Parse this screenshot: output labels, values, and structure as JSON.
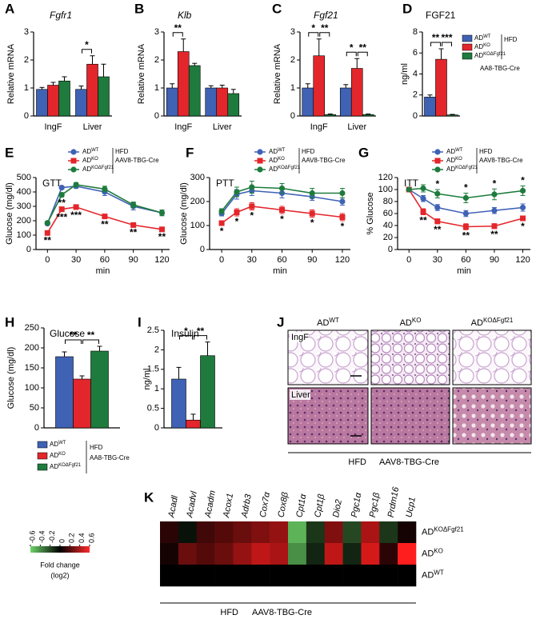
{
  "chart_data": [
    {
      "type": "bar",
      "panel": "A",
      "title": "Fgfr1",
      "ylabel": "Relative mRNA",
      "categories": [
        "IngF",
        "Liver"
      ],
      "series": [
        {
          "color": "#3f62b5",
          "values": [
            0.95,
            0.95
          ],
          "errors": [
            0.07,
            0.12
          ]
        },
        {
          "color": "#e3262b",
          "values": [
            1.1,
            1.85
          ],
          "errors": [
            0.1,
            0.3
          ]
        },
        {
          "color": "#1e7b3d",
          "values": [
            1.25,
            1.4
          ],
          "errors": [
            0.15,
            0.45
          ]
        }
      ],
      "ylim": [
        0,
        3
      ],
      "yticks": [
        0,
        1,
        2,
        3
      ],
      "annotations": [
        "*"
      ]
    },
    {
      "type": "bar",
      "panel": "B",
      "title": "Klb",
      "ylabel": "Relative mRNA",
      "categories": [
        "IngF",
        "Liver"
      ],
      "series": [
        {
          "color": "#3f62b5",
          "values": [
            1.0,
            1.0
          ],
          "errors": [
            0.15,
            0.08
          ]
        },
        {
          "color": "#e3262b",
          "values": [
            2.3,
            1.0
          ],
          "errors": [
            0.45,
            0.1
          ]
        },
        {
          "color": "#1e7b3d",
          "values": [
            1.8,
            0.8
          ],
          "errors": [
            0.08,
            0.15
          ]
        }
      ],
      "ylim": [
        0,
        3
      ],
      "yticks": [
        0,
        1,
        2,
        3
      ],
      "annotations": [
        "**"
      ]
    },
    {
      "type": "bar",
      "panel": "C",
      "title": "Fgf21",
      "ylabel": "Relative mRNA",
      "categories": [
        "IngF",
        "Liver"
      ],
      "series": [
        {
          "color": "#3f62b5",
          "values": [
            1.0,
            1.0
          ],
          "errors": [
            0.15,
            0.12
          ]
        },
        {
          "color": "#e3262b",
          "values": [
            2.15,
            1.7
          ],
          "errors": [
            0.6,
            0.35
          ]
        },
        {
          "color": "#1e7b3d",
          "values": [
            0.05,
            0.05
          ],
          "errors": [
            0.02,
            0.02
          ]
        }
      ],
      "ylim": [
        0,
        3
      ],
      "yticks": [
        0,
        1,
        2,
        3
      ],
      "annotations": [
        "*",
        "**",
        "*",
        "**"
      ]
    },
    {
      "type": "bar",
      "panel": "D",
      "title": "FGF21",
      "ylabel": "ng/ml",
      "categories": [
        null
      ],
      "series": [
        {
          "name": "AD",
          "name_sup": "WT",
          "color": "#3f62b5",
          "values": [
            1.8
          ],
          "errors": [
            0.2
          ]
        },
        {
          "name": "AD",
          "name_sup": "KO",
          "color": "#e3262b",
          "values": [
            5.4
          ],
          "errors": [
            1.0
          ]
        },
        {
          "name": "AD",
          "name_sup": "KOΔFgf21",
          "color": "#1e7b3d",
          "values": [
            0.1
          ],
          "errors": [
            0.05
          ]
        }
      ],
      "legend_notes": [
        "HFD",
        "AA8-TBG-Cre"
      ],
      "ylim": [
        0,
        8
      ],
      "yticks": [
        0,
        2,
        4,
        6,
        8
      ],
      "annotations": [
        "**",
        "***"
      ]
    },
    {
      "type": "line",
      "panel": "E",
      "title": "GTT",
      "ylabel": "Glucose (mg/dl)",
      "xlabel": "min",
      "x": [
        0,
        15,
        30,
        60,
        90,
        120
      ],
      "xlim": [
        -12,
        128
      ],
      "xticks": [
        0,
        30,
        60,
        90,
        120
      ],
      "ylim": [
        0,
        500
      ],
      "yticks": [
        0,
        100,
        200,
        300,
        400,
        500
      ],
      "series": [
        {
          "name": "AD",
          "name_sup": "WT",
          "color": "#3f62b5",
          "marker": "circle",
          "values": [
            180,
            430,
            440,
            400,
            300,
            255
          ],
          "errors": [
            10,
            10,
            15,
            25,
            25,
            20
          ],
          "labels": [
            null,
            null,
            null,
            null,
            null,
            null
          ],
          "label_position": "below"
        },
        {
          "name": "AD",
          "name_sup": "KO",
          "color": "#e3262b",
          "marker": "square",
          "values": [
            115,
            280,
            295,
            230,
            170,
            140
          ],
          "errors": [
            10,
            15,
            15,
            15,
            10,
            10
          ],
          "labels": [
            "**",
            "***",
            "***",
            "**",
            "**",
            "**"
          ],
          "label_position": "below"
        },
        {
          "name": "AD",
          "name_sup": "KOΔFgf21",
          "color": "#1e7b3d",
          "marker": "circle",
          "values": [
            185,
            380,
            450,
            420,
            310,
            255
          ],
          "errors": [
            10,
            15,
            15,
            20,
            20,
            20
          ],
          "labels": [
            null,
            "**",
            null,
            null,
            null,
            null
          ],
          "label_position": "below"
        }
      ],
      "legend_notes": [
        "HFD",
        "AAV8-TBG-Cre"
      ]
    },
    {
      "type": "line",
      "panel": "F",
      "title": "PTT",
      "ylabel": "Glucose (mg/dl)",
      "xlabel": "min",
      "x": [
        0,
        15,
        30,
        60,
        90,
        120
      ],
      "xlim": [
        -12,
        128
      ],
      "xticks": [
        0,
        30,
        60,
        90,
        120
      ],
      "ylim": [
        0,
        300
      ],
      "yticks": [
        0,
        100,
        200,
        300
      ],
      "series": [
        {
          "name": "AD",
          "name_sup": "WT",
          "color": "#3f62b5",
          "marker": "circle",
          "values": [
            150,
            230,
            245,
            235,
            220,
            200
          ],
          "errors": [
            10,
            20,
            20,
            20,
            15,
            15
          ],
          "labels": [
            null,
            null,
            null,
            null,
            null,
            null
          ],
          "label_position": "below"
        },
        {
          "name": "AD",
          "name_sup": "KO",
          "color": "#e3262b",
          "marker": "square",
          "values": [
            110,
            155,
            180,
            165,
            150,
            135
          ],
          "errors": [
            10,
            15,
            15,
            15,
            15,
            15
          ],
          "labels": [
            "*",
            "*",
            "*",
            "*",
            "*",
            "*"
          ],
          "label_position": "below"
        },
        {
          "name": "AD",
          "name_sup": "KOΔFgf21",
          "color": "#1e7b3d",
          "marker": "circle",
          "values": [
            160,
            240,
            260,
            255,
            235,
            235
          ],
          "errors": [
            10,
            20,
            25,
            20,
            20,
            20
          ],
          "labels": [
            null,
            null,
            null,
            null,
            null,
            null
          ],
          "label_position": "above"
        }
      ],
      "legend_notes": [
        "HFD",
        "AAV8-TBG-Cre"
      ]
    },
    {
      "type": "line",
      "panel": "G",
      "title": "ITT",
      "ylabel": "% Glucose",
      "xlabel": "min",
      "x": [
        0,
        15,
        30,
        60,
        90,
        120
      ],
      "xlim": [
        -12,
        128
      ],
      "xticks": [
        0,
        30,
        60,
        90,
        120
      ],
      "ylim": [
        0,
        120
      ],
      "yticks": [
        0,
        20,
        40,
        60,
        80,
        100,
        120
      ],
      "series": [
        {
          "name": "AD",
          "name_sup": "WT",
          "color": "#3f62b5",
          "marker": "circle",
          "values": [
            100,
            85,
            70,
            60,
            65,
            70
          ],
          "errors": [
            2,
            5,
            5,
            5,
            5,
            6
          ],
          "labels": [
            null,
            null,
            null,
            null,
            null,
            null
          ],
          "label_position": "below"
        },
        {
          "name": "AD",
          "name_sup": "KO",
          "color": "#e3262b",
          "marker": "square",
          "values": [
            100,
            63,
            47,
            38,
            39,
            52
          ],
          "errors": [
            2,
            5,
            4,
            5,
            4,
            4
          ],
          "labels": [
            null,
            "**",
            "**",
            "**",
            "**",
            "*"
          ],
          "label_position": "below"
        },
        {
          "name": "AD",
          "name_sup": "KOΔFgf21",
          "color": "#1e7b3d",
          "marker": "circle",
          "values": [
            100,
            102,
            93,
            86,
            92,
            98
          ],
          "errors": [
            2,
            6,
            7,
            8,
            9,
            8
          ],
          "labels": [
            null,
            null,
            "*",
            "*",
            "*",
            "*"
          ],
          "label_position": "above"
        }
      ],
      "legend_notes": [
        "HFD",
        "AAV8-TBG-Cre"
      ]
    },
    {
      "type": "bar",
      "panel": "H",
      "title": "Glucose",
      "ylabel": "Glucose (mg/dl)",
      "categories": [
        null
      ],
      "series": [
        {
          "name": "AD",
          "name_sup": "WT",
          "color": "#3f62b5",
          "values": [
            178
          ],
          "errors": [
            12
          ]
        },
        {
          "name": "AD",
          "name_sup": "KO",
          "color": "#e3262b",
          "values": [
            122
          ],
          "errors": [
            8
          ]
        },
        {
          "name": "AD",
          "name_sup": "KOΔFgf21",
          "color": "#1e7b3d",
          "values": [
            192
          ],
          "errors": [
            12
          ]
        }
      ],
      "legend_notes": [
        "HFD",
        "AA8-TBG-Cre"
      ],
      "ylim": [
        0,
        250
      ],
      "yticks": [
        0,
        50,
        100,
        150,
        200,
        250
      ],
      "annotations": [
        "**",
        "**"
      ]
    },
    {
      "type": "bar",
      "panel": "I",
      "title": "Insulin",
      "ylabel": "ng/ml",
      "categories": [
        null
      ],
      "series": [
        {
          "color": "#3f62b5",
          "values": [
            1.25
          ],
          "errors": [
            0.3
          ]
        },
        {
          "color": "#e3262b",
          "values": [
            0.2
          ],
          "errors": [
            0.15
          ]
        },
        {
          "color": "#1e7b3d",
          "values": [
            1.85
          ],
          "errors": [
            0.35
          ]
        }
      ],
      "ylim": [
        0,
        2.5
      ],
      "yticks": [
        0,
        0.5,
        1,
        1.5,
        2,
        2.5
      ],
      "annotations": [
        "*",
        "**"
      ]
    },
    {
      "type": "heatmap",
      "panel": "K",
      "columns": [
        "Acadl",
        "Acadvl",
        "Acadm",
        "Acox1",
        "Adrb3",
        "Cox7α",
        "Cox8β",
        "Cpt1α",
        "Cpt1β",
        "Dio2",
        "Pgc1α",
        "Pgc1β",
        "Prdm16",
        "Ucp1"
      ],
      "rows": [
        {
          "name": "AD",
          "name_sup": "KOΔFgf21"
        },
        {
          "name": "AD",
          "name_sup": "KO"
        },
        {
          "name": "AD",
          "name_sup": "WT"
        }
      ],
      "values": [
        [
          0.1,
          -0.05,
          0.15,
          0.2,
          0.25,
          0.3,
          0.35,
          -0.5,
          -0.15,
          0.3,
          -0.2,
          0.4,
          -0.15,
          0.05
        ],
        [
          0.05,
          0.25,
          0.2,
          0.25,
          0.35,
          0.45,
          0.4,
          -0.4,
          -0.1,
          0.45,
          -0.1,
          0.5,
          0.1,
          0.7
        ],
        [
          0,
          0,
          0,
          0,
          0,
          0,
          0,
          0,
          0,
          0,
          0,
          0,
          0,
          0
        ]
      ],
      "clim": [
        -0.6,
        0.6
      ],
      "colorbar_ticks": [
        -0.6,
        -0.4,
        -0.2,
        0,
        0.2,
        0.4,
        0.6
      ],
      "colorbar_label": [
        "Fold change",
        "(log2)"
      ],
      "footer": [
        "HFD",
        "AAV8-TBG-Cre"
      ]
    }
  ],
  "figure_j": {
    "panel": "J",
    "columns": [
      {
        "name": "AD",
        "name_sup": "WT"
      },
      {
        "name": "AD",
        "name_sup": "KO"
      },
      {
        "name": "AD",
        "name_sup": "KOΔFgf21"
      }
    ],
    "rows": [
      "IngF",
      "Liver"
    ],
    "footer": [
      "HFD",
      "AAV8-TBG-Cre"
    ]
  }
}
